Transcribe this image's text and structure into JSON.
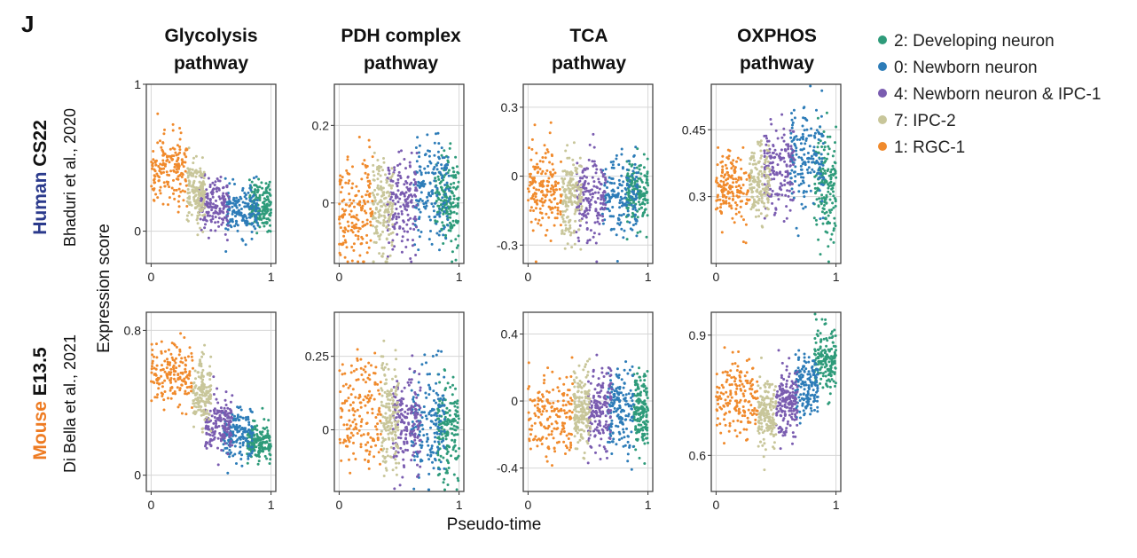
{
  "panel_letter": "J",
  "column_titles": [
    [
      "Glycolysis",
      "pathway"
    ],
    [
      "PDH complex",
      "pathway"
    ],
    [
      "TCA",
      "pathway"
    ],
    [
      "OXPHOS",
      "pathway"
    ]
  ],
  "rows": [
    {
      "species": "Human",
      "stage": "CS22",
      "source": "Bhaduri et al., 2020",
      "species_color": "#2b3a8c"
    },
    {
      "species": "Mouse",
      "stage": "E13.5",
      "source": "Di Bella et al., 2021",
      "species_color": "#ee7b22"
    }
  ],
  "ylabel": "Expression score",
  "xlabel": "Pseudo-time",
  "legend": [
    {
      "label": "2: Developing neuron",
      "color": "#2e9b7a"
    },
    {
      "label": "0: Newborn neuron",
      "color": "#2d7cb8"
    },
    {
      "label": "4: Newborn neuron & IPC-1",
      "color": "#7a5cb0"
    },
    {
      "label": "7: IPC-2",
      "color": "#c8c69a"
    },
    {
      "label": "1: RGC-1",
      "color": "#f08a2c"
    }
  ],
  "chart_data": {
    "type": "scatter",
    "x_ticks": [
      "0",
      "1"
    ],
    "xlim": [
      0,
      1
    ],
    "grid": true,
    "legend_position": "right",
    "series_order": [
      "2: Developing neuron",
      "0: Newborn neuron",
      "4: Newborn neuron & IPC-1",
      "7: IPC-2",
      "1: RGC-1"
    ],
    "panels": [
      {
        "row": 0,
        "col": 0,
        "ylim": [
          -0.22,
          1.0
        ],
        "y_ticks": [
          0,
          1
        ],
        "y_tick_labels": [
          "0",
          "1"
        ],
        "clusters": [
          {
            "series": "1: RGC-1",
            "x": [
              0.0,
              0.3
            ],
            "y_mean": 0.42,
            "y_sd": 0.12
          },
          {
            "series": "7: IPC-2",
            "x": [
              0.3,
              0.45
            ],
            "y_mean": 0.26,
            "y_sd": 0.1
          },
          {
            "series": "4: Newborn neuron & IPC-1",
            "x": [
              0.4,
              0.65
            ],
            "y_mean": 0.17,
            "y_sd": 0.09
          },
          {
            "series": "0: Newborn neuron",
            "x": [
              0.62,
              0.9
            ],
            "y_mean": 0.14,
            "y_sd": 0.08
          },
          {
            "series": "2: Developing neuron",
            "x": [
              0.82,
              1.0
            ],
            "y_mean": 0.18,
            "y_sd": 0.08
          }
        ]
      },
      {
        "row": 0,
        "col": 1,
        "ylim": [
          -0.156,
          0.306
        ],
        "y_ticks": [
          0,
          0.2
        ],
        "y_tick_labels": [
          "0",
          "0.2"
        ],
        "clusters": [
          {
            "series": "1: RGC-1",
            "x": [
              0.0,
              0.28
            ],
            "y_mean": -0.02,
            "y_sd": 0.07
          },
          {
            "series": "7: IPC-2",
            "x": [
              0.28,
              0.45
            ],
            "y_mean": -0.01,
            "y_sd": 0.06
          },
          {
            "series": "4: Newborn neuron & IPC-1",
            "x": [
              0.4,
              0.65
            ],
            "y_mean": 0.0,
            "y_sd": 0.06
          },
          {
            "series": "0: Newborn neuron",
            "x": [
              0.62,
              0.92
            ],
            "y_mean": 0.02,
            "y_sd": 0.07
          },
          {
            "series": "2: Developing neuron",
            "x": [
              0.8,
              1.0
            ],
            "y_mean": 0.01,
            "y_sd": 0.06
          }
        ]
      },
      {
        "row": 0,
        "col": 2,
        "ylim": [
          -0.38,
          0.4
        ],
        "y_ticks": [
          -0.3,
          0,
          0.3
        ],
        "y_tick_labels": [
          "-0.3",
          "0",
          "0.3"
        ],
        "clusters": [
          {
            "series": "1: RGC-1",
            "x": [
              0.0,
              0.28
            ],
            "y_mean": -0.05,
            "y_sd": 0.1
          },
          {
            "series": "7: IPC-2",
            "x": [
              0.28,
              0.45
            ],
            "y_mean": -0.08,
            "y_sd": 0.09
          },
          {
            "series": "4: Newborn neuron & IPC-1",
            "x": [
              0.4,
              0.65
            ],
            "y_mean": -0.1,
            "y_sd": 0.09
          },
          {
            "series": "0: Newborn neuron",
            "x": [
              0.62,
              0.92
            ],
            "y_mean": -0.1,
            "y_sd": 0.09
          },
          {
            "series": "2: Developing neuron",
            "x": [
              0.82,
              1.0
            ],
            "y_mean": -0.08,
            "y_sd": 0.08
          }
        ]
      },
      {
        "row": 0,
        "col": 3,
        "ylim": [
          0.15,
          0.552
        ],
        "y_ticks": [
          0.3,
          0.45
        ],
        "y_tick_labels": [
          "0.3",
          "0.45"
        ],
        "clusters": [
          {
            "series": "1: RGC-1",
            "x": [
              0.0,
              0.28
            ],
            "y_mean": 0.32,
            "y_sd": 0.04
          },
          {
            "series": "7: IPC-2",
            "x": [
              0.28,
              0.45
            ],
            "y_mean": 0.33,
            "y_sd": 0.04
          },
          {
            "series": "4: Newborn neuron & IPC-1",
            "x": [
              0.4,
              0.65
            ],
            "y_mean": 0.36,
            "y_sd": 0.05
          },
          {
            "series": "0: Newborn neuron",
            "x": [
              0.62,
              0.9
            ],
            "y_mean": 0.38,
            "y_sd": 0.06
          },
          {
            "series": "2: Developing neuron",
            "x": [
              0.82,
              1.0
            ],
            "y_mean": 0.33,
            "y_sd": 0.06
          }
        ]
      },
      {
        "row": 1,
        "col": 0,
        "ylim": [
          -0.09,
          0.9
        ],
        "y_ticks": [
          0,
          0.8
        ],
        "y_tick_labels": [
          "0",
          "0.8"
        ],
        "clusters": [
          {
            "series": "1: RGC-1",
            "x": [
              0.0,
              0.35
            ],
            "y_mean": 0.55,
            "y_sd": 0.09
          },
          {
            "series": "7: IPC-2",
            "x": [
              0.35,
              0.5
            ],
            "y_mean": 0.45,
            "y_sd": 0.09
          },
          {
            "series": "4: Newborn neuron & IPC-1",
            "x": [
              0.45,
              0.68
            ],
            "y_mean": 0.28,
            "y_sd": 0.08
          },
          {
            "series": "0: Newborn neuron",
            "x": [
              0.6,
              0.85
            ],
            "y_mean": 0.23,
            "y_sd": 0.07
          },
          {
            "series": "2: Developing neuron",
            "x": [
              0.8,
              1.0
            ],
            "y_mean": 0.18,
            "y_sd": 0.05
          }
        ]
      },
      {
        "row": 1,
        "col": 1,
        "ylim": [
          -0.21,
          0.4
        ],
        "y_ticks": [
          0,
          0.25
        ],
        "y_tick_labels": [
          "0",
          "0.25"
        ],
        "clusters": [
          {
            "series": "1: RGC-1",
            "x": [
              0.0,
              0.35
            ],
            "y_mean": 0.05,
            "y_sd": 0.1
          },
          {
            "series": "7: IPC-2",
            "x": [
              0.35,
              0.5
            ],
            "y_mean": 0.05,
            "y_sd": 0.09
          },
          {
            "series": "4: Newborn neuron & IPC-1",
            "x": [
              0.45,
              0.68
            ],
            "y_mean": 0.03,
            "y_sd": 0.09
          },
          {
            "series": "0: Newborn neuron",
            "x": [
              0.6,
              0.88
            ],
            "y_mean": 0.02,
            "y_sd": 0.09
          },
          {
            "series": "2: Developing neuron",
            "x": [
              0.82,
              1.0
            ],
            "y_mean": 0.0,
            "y_sd": 0.08
          }
        ]
      },
      {
        "row": 1,
        "col": 2,
        "ylim": [
          -0.54,
          0.53
        ],
        "y_ticks": [
          -0.4,
          0,
          0.4
        ],
        "y_tick_labels": [
          "-0.4",
          "0",
          "0.4"
        ],
        "clusters": [
          {
            "series": "1: RGC-1",
            "x": [
              0.0,
              0.38
            ],
            "y_mean": -0.08,
            "y_sd": 0.13
          },
          {
            "series": "7: IPC-2",
            "x": [
              0.38,
              0.52
            ],
            "y_mean": -0.05,
            "y_sd": 0.12
          },
          {
            "series": "4: Newborn neuron & IPC-1",
            "x": [
              0.5,
              0.7
            ],
            "y_mean": -0.06,
            "y_sd": 0.12
          },
          {
            "series": "0: Newborn neuron",
            "x": [
              0.66,
              0.88
            ],
            "y_mean": -0.06,
            "y_sd": 0.12
          },
          {
            "series": "2: Developing neuron",
            "x": [
              0.88,
              1.0
            ],
            "y_mean": -0.05,
            "y_sd": 0.11
          }
        ]
      },
      {
        "row": 1,
        "col": 3,
        "ylim": [
          0.51,
          0.957
        ],
        "y_ticks": [
          0.6,
          0.9
        ],
        "y_tick_labels": [
          "0.6",
          "0.9"
        ],
        "clusters": [
          {
            "series": "1: RGC-1",
            "x": [
              0.0,
              0.35
            ],
            "y_mean": 0.74,
            "y_sd": 0.05
          },
          {
            "series": "7: IPC-2",
            "x": [
              0.35,
              0.5
            ],
            "y_mean": 0.7,
            "y_sd": 0.04
          },
          {
            "series": "4: Newborn neuron & IPC-1",
            "x": [
              0.5,
              0.68
            ],
            "y_mean": 0.73,
            "y_sd": 0.04
          },
          {
            "series": "0: Newborn neuron",
            "x": [
              0.66,
              0.85
            ],
            "y_mean": 0.77,
            "y_sd": 0.04
          },
          {
            "series": "2: Developing neuron",
            "x": [
              0.82,
              1.0
            ],
            "y_mean": 0.84,
            "y_sd": 0.04
          }
        ]
      }
    ]
  }
}
